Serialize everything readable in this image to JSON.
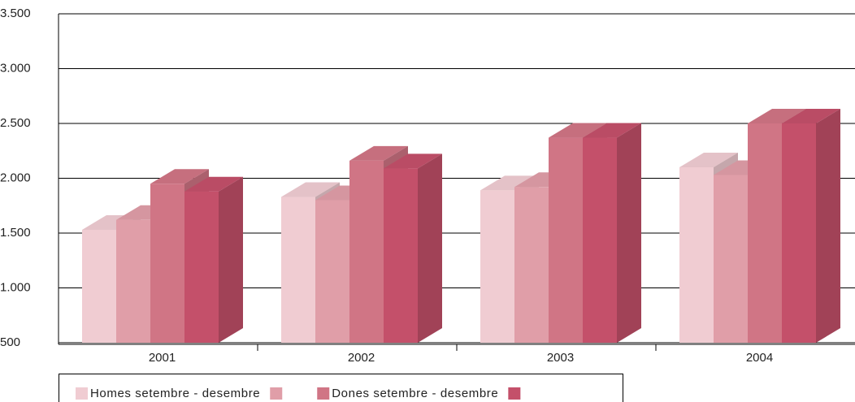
{
  "chart_data": {
    "type": "bar3d",
    "categories": [
      "2001",
      "2002",
      "2003",
      "2004"
    ],
    "series": [
      {
        "name": "Homes setembre - desembre",
        "color": "#f0ccd2",
        "values": [
          1530,
          1830,
          1890,
          2100
        ]
      },
      {
        "name": null,
        "color": "#e09ea8",
        "values": [
          1620,
          1800,
          1920,
          2030
        ]
      },
      {
        "name": "Dones setembre - desembre",
        "color": "#d07585",
        "values": [
          1950,
          2160,
          2370,
          2500
        ]
      },
      {
        "name": null,
        "color": "#c4506a",
        "values": [
          1880,
          2090,
          2370,
          2500
        ]
      }
    ],
    "ylim": [
      500,
      3500
    ],
    "yticks": [
      500,
      {
        "value": 1000,
        "label": "1.000"
      },
      {
        "value": 1500,
        "label": "1.500"
      },
      {
        "value": 2000,
        "label": "2.000"
      },
      {
        "value": 2500,
        "label": "2.500"
      },
      {
        "value": 3000,
        "label": "3.000"
      },
      {
        "value": 3500,
        "label": "3.500"
      }
    ],
    "grid": true
  }
}
